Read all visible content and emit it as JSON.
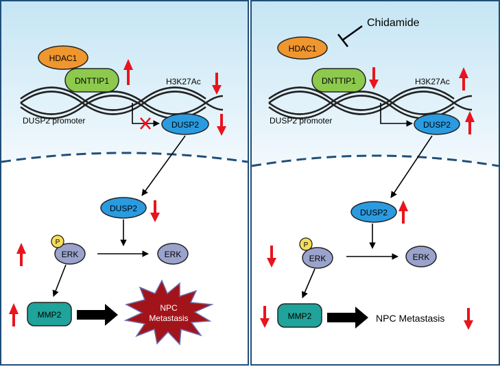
{
  "left_panel": {
    "hdac1": "HDAC1",
    "dnttip1": "DNTTIP1",
    "h3k27ac": "H3K27Ac",
    "promoter": "DUSP2 promoter",
    "dusp2_nucleus": "DUSP2",
    "dusp2_cyto": "DUSP2",
    "phospho": "P",
    "erk_p": "ERK",
    "erk": "ERK",
    "mmp2": "MMP2",
    "outcome_line1": "NPC",
    "outcome_line2": "Metastasis"
  },
  "right_panel": {
    "drug": "Chidamide",
    "hdac1": "HDAC1",
    "dnttip1": "DNTTIP1",
    "h3k27ac": "H3K27Ac",
    "promoter": "DUSP2 promoter",
    "dusp2_nucleus": "DUSP2",
    "dusp2_cyto": "DUSP2",
    "phospho": "P",
    "erk_p": "ERK",
    "erk": "ERK",
    "mmp2": "MMP2",
    "outcome": "NPC Metastasis"
  },
  "colors": {
    "border": "#1f4e79",
    "nucleus_top": "#cfe9f5",
    "hdac1": "#f0962e",
    "dnttip1": "#8cc94d",
    "dusp2": "#2a9be0",
    "erk": "#9ba3cc",
    "phospho": "#f5dd5c",
    "mmp2": "#1fa39a",
    "starburst": "#a3141a",
    "arrow_red": "#e8141e"
  }
}
